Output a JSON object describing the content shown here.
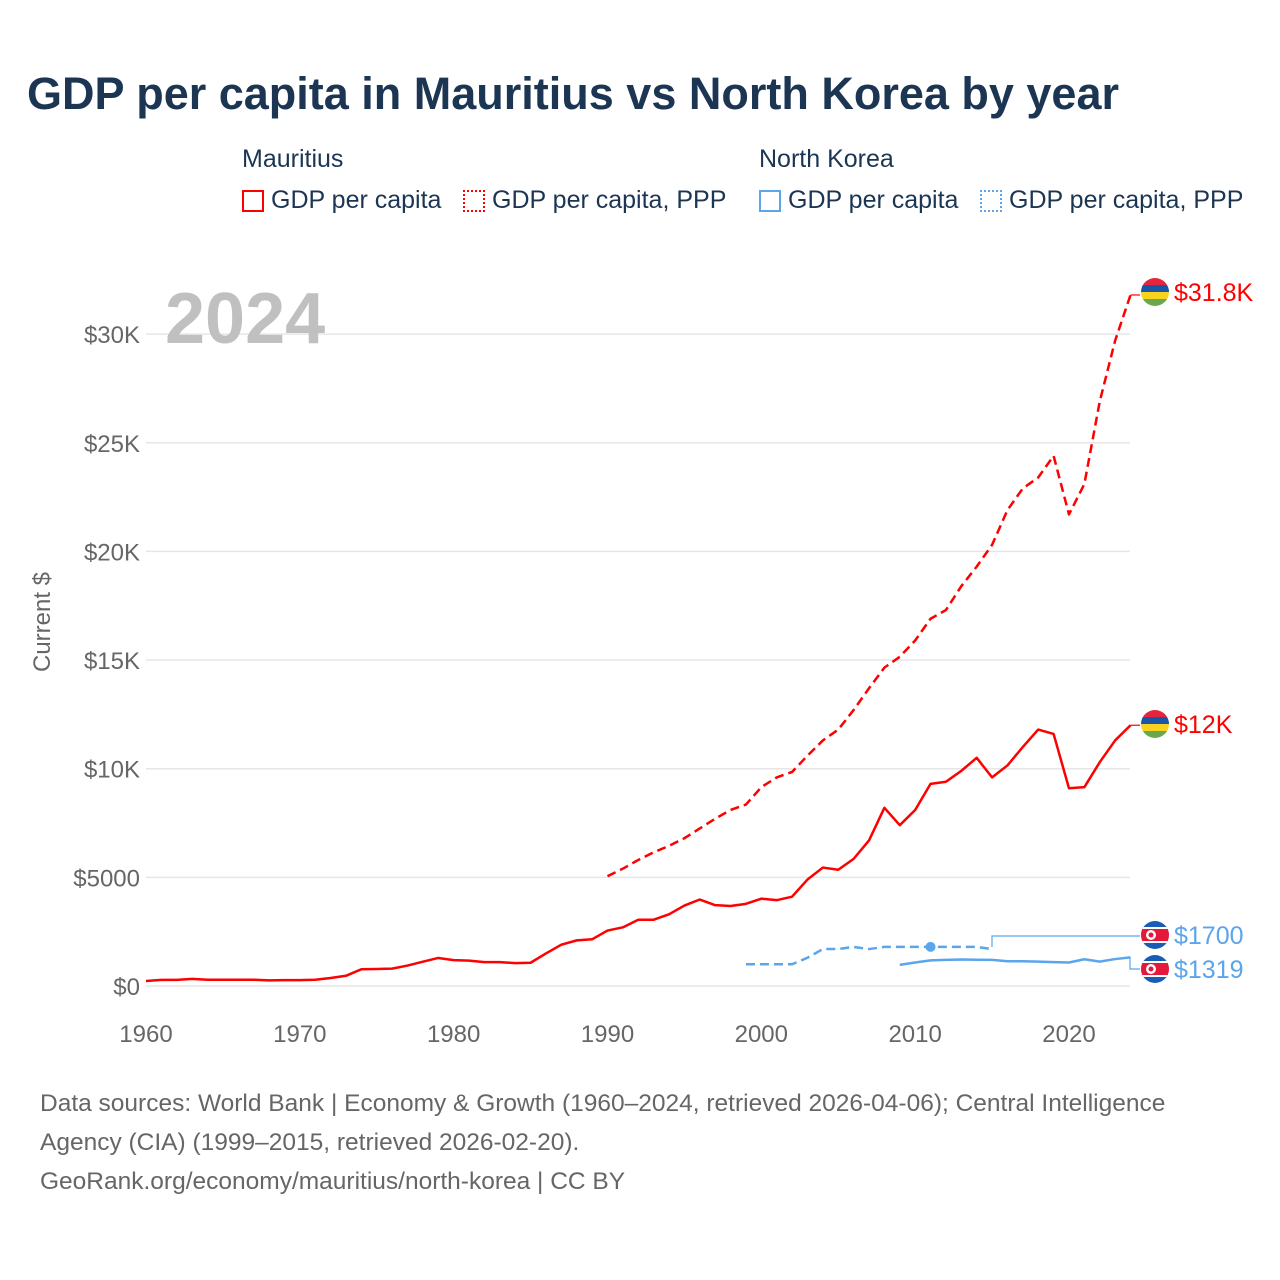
{
  "title": "GDP per capita in Mauritius vs North Korea by year",
  "legend": {
    "groups": [
      {
        "name": "Mauritius",
        "items": [
          "GDP per capita",
          "GDP per capita, PPP"
        ]
      },
      {
        "name": "North Korea",
        "items": [
          "GDP per capita",
          "GDP per capita, PPP"
        ]
      }
    ]
  },
  "colors": {
    "mauritius": "#ff0000",
    "north_korea": "#5aa5ec",
    "grid": "#e6e6e6",
    "axis_text": "#666666",
    "year_watermark": "#c0c0c0"
  },
  "footer": {
    "line1": "Data sources: World Bank | Economy & Growth (1960–2024, retrieved 2026-04-06); Central Intelligence",
    "line2": "Agency (CIA) (1999–2015, retrieved 2026-02-20).",
    "line3": "GeoRank.org/economy/mauritius/north-korea | CC BY"
  },
  "chart_data": {
    "type": "line",
    "title": "GDP per capita in Mauritius vs North Korea by year",
    "year_label": "2024",
    "xlabel": "",
    "ylabel": "Current $",
    "xlim": [
      1960,
      2024
    ],
    "ylim": [
      0,
      32000
    ],
    "x_ticks": [
      1960,
      1970,
      1980,
      1990,
      2000,
      2010,
      2020
    ],
    "x_tick_labels": [
      "1960",
      "1970",
      "1980",
      "1990",
      "2000",
      "2010",
      "2020"
    ],
    "y_ticks": [
      0,
      5000,
      10000,
      15000,
      20000,
      25000,
      30000
    ],
    "y_tick_labels": [
      "$0",
      "$5000",
      "$10K",
      "$15K",
      "$20K",
      "$25K",
      "$30K"
    ],
    "grid": true,
    "legend_position": "top",
    "series": [
      {
        "name": "Mauritius GDP per capita",
        "country": "mauritius",
        "style": "solid",
        "start": 1960,
        "end_label": "$12K",
        "values": [
          230,
          280,
          280,
          330,
          290,
          290,
          290,
          290,
          260,
          270,
          270,
          290,
          370,
          470,
          770,
          780,
          800,
          940,
          1120,
          1290,
          1190,
          1170,
          1100,
          1100,
          1050,
          1070,
          1500,
          1900,
          2100,
          2150,
          2550,
          2700,
          3050,
          3050,
          3300,
          3700,
          3980,
          3720,
          3680,
          3780,
          4020,
          3950,
          4110,
          4900,
          5450,
          5350,
          5850,
          6700,
          8200,
          7400,
          8100,
          9300,
          9400,
          9900,
          10500,
          9600,
          10150,
          11000,
          11800,
          11600,
          9100,
          9150,
          10300,
          11300,
          12000
        ]
      },
      {
        "name": "Mauritius GDP per capita, PPP",
        "country": "mauritius",
        "style": "dashed",
        "start": 1990,
        "end_label": "$31.8K",
        "values": [
          5050,
          5400,
          5800,
          6150,
          6450,
          6800,
          7250,
          7700,
          8100,
          8350,
          9150,
          9600,
          9850,
          10600,
          11300,
          11800,
          12700,
          13700,
          14650,
          15150,
          15900,
          16900,
          17300,
          18400,
          19300,
          20300,
          21900,
          22900,
          23400,
          24400,
          21700,
          23100,
          26900,
          29700,
          31800
        ]
      },
      {
        "name": "North Korea GDP per capita",
        "country": "north_korea",
        "style": "solid",
        "start": 2009,
        "end_label": "$1319",
        "values": [
          970,
          1080,
          1180,
          1200,
          1220,
          1210,
          1200,
          1140,
          1140,
          1120,
          1100,
          1080,
          1230,
          1120,
          1240,
          1319
        ]
      },
      {
        "name": "North Korea GDP per capita, PPP",
        "country": "north_korea",
        "style": "dashed",
        "start": 1999,
        "end_label": "$1700",
        "marker_year": 2011,
        "values": [
          1000,
          1000,
          1000,
          1000,
          1300,
          1700,
          1700,
          1800,
          1700,
          1800,
          1800,
          1800,
          1800,
          1800,
          1800,
          1800,
          1700
        ]
      }
    ]
  }
}
